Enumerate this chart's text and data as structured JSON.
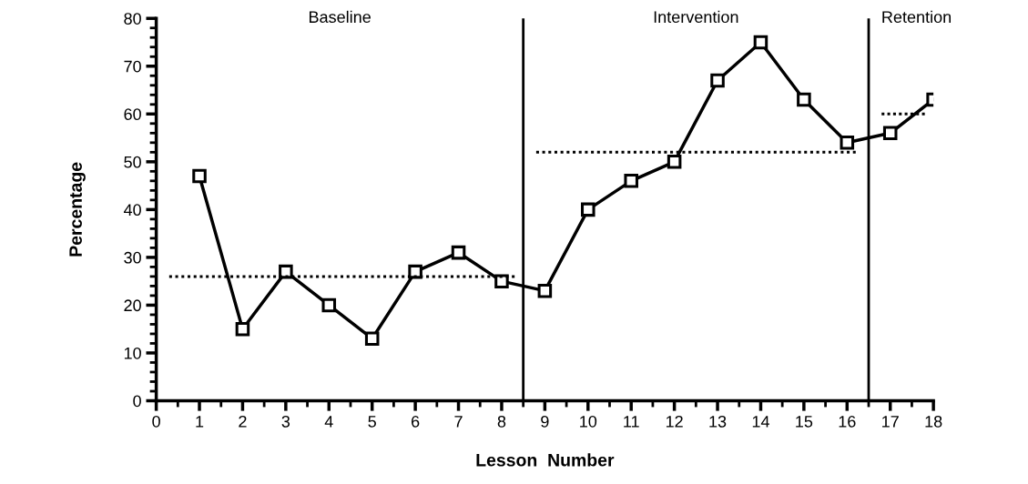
{
  "chart_data": {
    "type": "line",
    "xlabel": "Lesson  Number",
    "ylabel": "Percentage",
    "x": [
      1,
      2,
      3,
      4,
      5,
      6,
      7,
      8,
      9,
      10,
      11,
      12,
      13,
      14,
      15,
      16,
      17,
      18
    ],
    "series": [
      {
        "color": "#000000",
        "marker": "square",
        "line_style": "solid",
        "values": [
          47,
          15,
          27,
          20,
          13,
          27,
          31,
          25,
          23,
          40,
          46,
          50,
          67,
          75,
          63,
          54,
          56,
          63
        ]
      },
      {
        "color": "#000000",
        "marker": "none",
        "line_style": "dotted",
        "x": [
          0.3,
          8.3
        ],
        "values": [
          26,
          26
        ]
      },
      {
        "color": "#000000",
        "marker": "none",
        "line_style": "dotted",
        "x": [
          8.8,
          16.2
        ],
        "values": [
          52,
          52
        ]
      },
      {
        "color": "#000000",
        "marker": "none",
        "line_style": "dotted",
        "x": [
          16.8,
          17.8
        ],
        "values": [
          60,
          60
        ]
      }
    ],
    "ref_lines": [
      {
        "axis": "x",
        "value": 8.5,
        "color": "#000000"
      },
      {
        "axis": "x",
        "value": 16.5,
        "color": "#000000"
      }
    ],
    "annotations": [
      "Baseline",
      "Intervention",
      "Retention"
    ],
    "xlim": [
      0,
      18
    ],
    "xticks": [
      0,
      1,
      2,
      3,
      4,
      5,
      6,
      7,
      8,
      9,
      10,
      11,
      12,
      13,
      14,
      15,
      16,
      17,
      18
    ],
    "ylim": [
      0,
      80
    ],
    "yticks": [
      0,
      10,
      20,
      30,
      40,
      50,
      60,
      70,
      80
    ],
    "grid": false,
    "legend": false
  }
}
